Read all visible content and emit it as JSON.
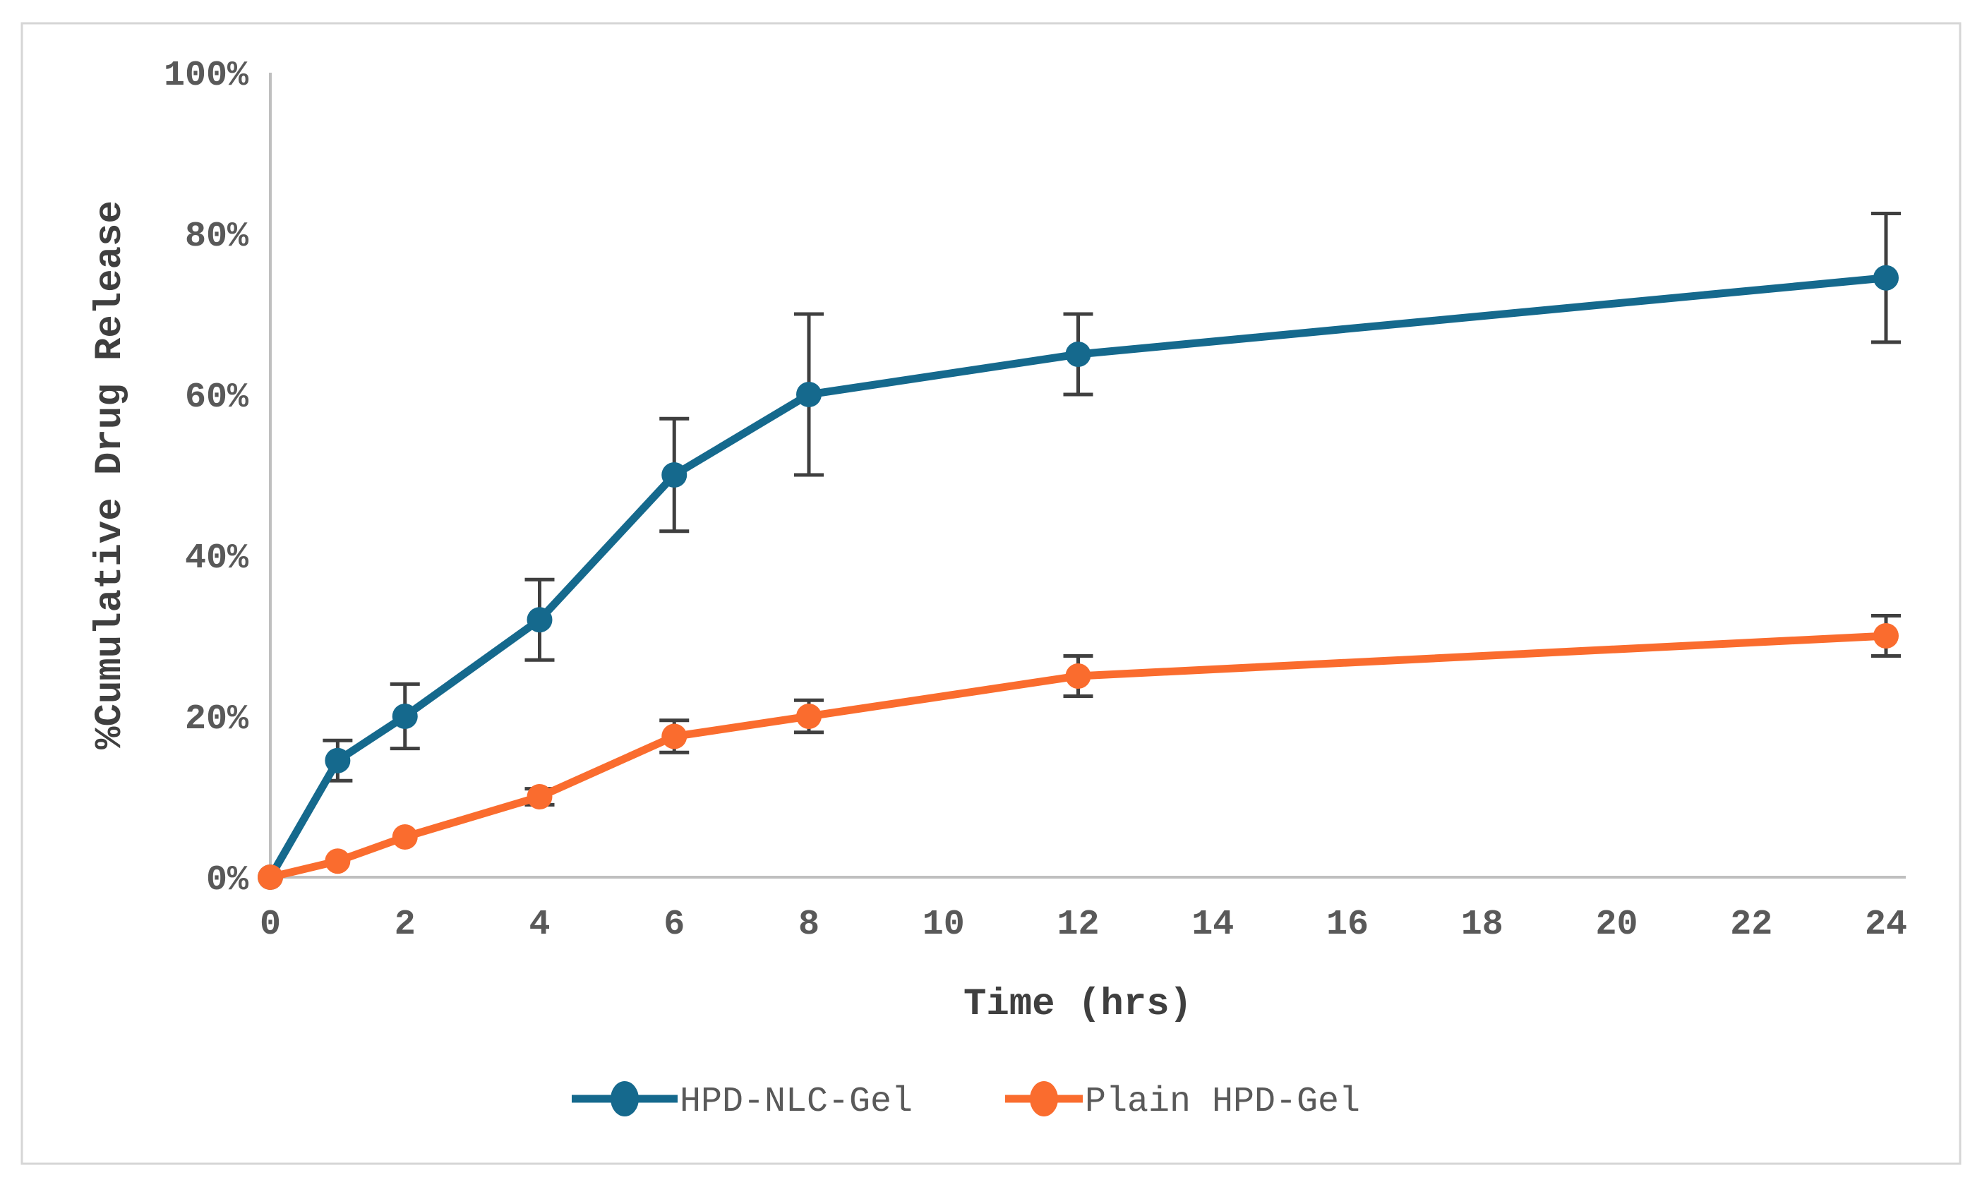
{
  "chart_data": {
    "type": "line",
    "title": "",
    "xlabel": "Time (hrs)",
    "ylabel": "%Cumulative Drug Release",
    "x": [
      0,
      1,
      2,
      4,
      6,
      8,
      12,
      24
    ],
    "series": [
      {
        "name": "HPD-NLC-Gel",
        "color": "#15698D",
        "values": [
          0,
          14.5,
          20,
          32,
          50,
          60,
          65,
          74.5
        ],
        "error_bars": [
          0,
          2.5,
          4,
          5,
          7,
          10,
          5,
          8
        ]
      },
      {
        "name": "Plain HPD-Gel",
        "color": "#FA6C2E",
        "values": [
          0,
          2,
          5,
          10,
          17.5,
          20,
          25,
          30
        ],
        "error_bars": [
          0,
          0,
          0,
          1,
          2,
          2,
          2.5,
          2.5
        ]
      }
    ],
    "xlim": [
      0,
      24
    ],
    "ylim": [
      0,
      100
    ],
    "x_ticks": [
      0,
      2,
      4,
      6,
      8,
      10,
      12,
      14,
      16,
      18,
      20,
      22,
      24
    ],
    "y_ticks": [
      0,
      20,
      40,
      60,
      80,
      100
    ],
    "y_tick_suffix": "%",
    "grid": false,
    "legend_position": "bottom-center",
    "styles": {
      "error_bar_color": "#3F3F3F",
      "axis_line_color": "#BFBFBF",
      "tick_label_color": "#595959",
      "axis_title_color": "#3F3F3F",
      "legend_text_color": "#595959",
      "figure_border_color": "#D6D6D6",
      "background_color": "#FFFFFF"
    }
  }
}
